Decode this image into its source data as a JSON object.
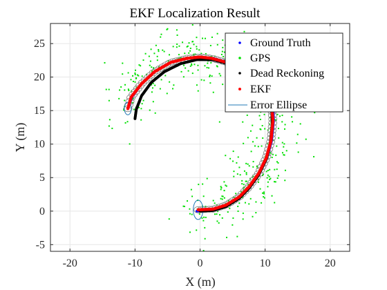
{
  "chart_data": {
    "type": "scatter",
    "title": "EKF Localization Result",
    "xlabel": "X (m)",
    "ylabel": "Y (m)",
    "xlim": [
      -23,
      23
    ],
    "ylim": [
      -6,
      28
    ],
    "xticks": [
      -20,
      -10,
      0,
      10,
      20
    ],
    "yticks": [
      -5,
      0,
      5,
      10,
      15,
      20,
      25
    ],
    "grid": true,
    "legend_position": "top-right",
    "legend": [
      "Ground Truth",
      "GPS",
      "Dead Reckoning",
      "EKF",
      "Error Ellipse"
    ],
    "colors": {
      "ground_truth": "#0000ff",
      "gps": "#00e000",
      "dead_reckoning": "#000000",
      "ekf": "#ff0000",
      "error_ellipse": "#1f77b4",
      "ekf_ellipse_outline": "#808080",
      "grid": "#e6e6e6",
      "axes": "#262626"
    },
    "series": [
      {
        "name": "Ground Truth",
        "marker": "dot",
        "path": [
          [
            -0.5,
            0
          ],
          [
            2,
            0.2
          ],
          [
            4,
            0.8
          ],
          [
            6,
            2
          ],
          [
            7.5,
            3.5
          ],
          [
            9,
            5.5
          ],
          [
            10.3,
            8
          ],
          [
            11,
            10.5
          ],
          [
            11.3,
            13.5
          ],
          [
            11.2,
            16
          ],
          [
            10,
            18.5
          ],
          [
            8,
            20.5
          ],
          [
            5,
            22
          ],
          [
            2,
            22.8
          ],
          [
            0,
            23
          ],
          [
            -2,
            22.8
          ],
          [
            -4.5,
            22.2
          ],
          [
            -7,
            20.8
          ],
          [
            -9,
            19
          ],
          [
            -10.5,
            17
          ],
          [
            -11,
            15.5
          ]
        ]
      },
      {
        "name": "EKF",
        "marker": "dot",
        "path": [
          [
            -0.3,
            0.2
          ],
          [
            2,
            0.3
          ],
          [
            4,
            0.9
          ],
          [
            6,
            2.1
          ],
          [
            7.5,
            3.6
          ],
          [
            9,
            5.6
          ],
          [
            10.2,
            8
          ],
          [
            10.9,
            10.5
          ],
          [
            11.2,
            13.5
          ],
          [
            11,
            16
          ],
          [
            9.8,
            18.5
          ],
          [
            7.8,
            20.5
          ],
          [
            4.8,
            22
          ],
          [
            1.8,
            22.8
          ],
          [
            0,
            23
          ],
          [
            -2,
            22.8
          ],
          [
            -4.5,
            22.2
          ],
          [
            -7,
            20.8
          ],
          [
            -9,
            19
          ],
          [
            -10.6,
            17
          ],
          [
            -11.1,
            15.3
          ]
        ]
      },
      {
        "name": "Dead Reckoning",
        "marker": "dot",
        "path": [
          [
            0,
            0
          ],
          [
            2,
            0.1
          ],
          [
            4,
            0.7
          ],
          [
            6,
            1.9
          ],
          [
            7.5,
            3.4
          ],
          [
            9,
            5.4
          ],
          [
            10.2,
            7.8
          ],
          [
            10.8,
            10.2
          ],
          [
            11.1,
            13
          ],
          [
            11,
            15.5
          ],
          [
            10,
            18
          ],
          [
            8,
            20
          ],
          [
            5,
            21.8
          ],
          [
            2,
            22.6
          ],
          [
            -0.5,
            22.6
          ],
          [
            -3,
            22
          ],
          [
            -5.5,
            20.8
          ],
          [
            -7.5,
            19.2
          ],
          [
            -9,
            17.2
          ],
          [
            -9.8,
            15.2
          ],
          [
            -10,
            13.8
          ]
        ]
      },
      {
        "name": "GPS",
        "marker": "dot",
        "scatter_sd": 2.3
      }
    ]
  }
}
